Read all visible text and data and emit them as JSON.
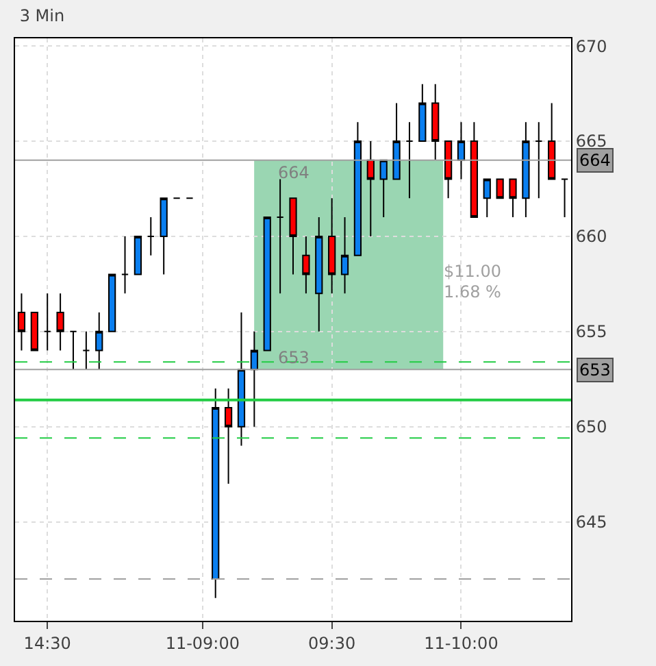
{
  "chart_data": {
    "type": "candlestick",
    "title": "3 Min",
    "categories": [
      null,
      null,
      "14:30",
      null,
      null,
      null,
      null,
      null,
      null,
      null,
      null,
      null,
      null,
      null,
      "11-09:00",
      null,
      null,
      null,
      null,
      null,
      null,
      null,
      null,
      null,
      "09:30",
      null,
      null,
      null,
      null,
      null,
      null,
      null,
      null,
      null,
      "11-10:00",
      null,
      null,
      null,
      null,
      null,
      null,
      null,
      null
    ],
    "ohlc": [
      [
        656,
        657,
        654,
        655
      ],
      [
        656,
        656,
        654,
        654
      ],
      [
        655,
        657,
        654,
        655
      ],
      [
        656,
        657,
        654,
        655
      ],
      [
        655,
        655,
        653,
        655
      ],
      [
        654,
        655,
        653,
        654
      ],
      [
        654,
        656,
        653,
        655
      ],
      [
        655,
        658,
        655,
        658
      ],
      [
        658,
        660,
        657,
        658
      ],
      [
        658,
        660,
        658,
        660
      ],
      [
        660,
        661,
        659,
        660
      ],
      [
        660,
        662,
        658,
        662
      ],
      [
        662,
        662,
        662,
        662
      ],
      [
        662,
        662,
        662,
        662
      ],
      null,
      [
        642,
        652,
        641,
        651
      ],
      [
        651,
        652,
        647,
        650
      ],
      [
        650,
        656,
        649,
        653
      ],
      [
        653,
        655,
        650,
        654
      ],
      [
        654,
        661,
        654,
        661
      ],
      [
        661,
        663,
        657,
        661
      ],
      [
        662,
        662,
        658,
        660
      ],
      [
        659,
        660,
        657,
        658
      ],
      [
        657,
        661,
        655,
        660
      ],
      [
        660,
        662,
        657,
        658
      ],
      [
        658,
        661,
        657,
        659
      ],
      [
        659,
        666,
        659,
        665
      ],
      [
        664,
        665,
        660,
        663
      ],
      [
        663,
        664,
        661,
        664
      ],
      [
        663,
        667,
        663,
        665
      ],
      [
        665,
        666,
        662,
        665
      ],
      [
        665,
        668,
        665,
        667
      ],
      [
        667,
        668,
        664,
        665
      ],
      [
        665,
        665,
        662,
        663
      ],
      [
        664,
        666,
        663,
        665
      ],
      [
        665,
        666,
        661,
        661
      ],
      [
        662,
        663,
        661,
        663
      ],
      [
        663,
        663,
        662,
        662
      ],
      [
        663,
        663,
        661,
        662
      ],
      [
        662,
        666,
        661,
        665
      ],
      [
        665,
        666,
        662,
        665
      ],
      [
        665,
        667,
        663,
        663
      ],
      [
        663,
        663,
        661,
        663
      ]
    ],
    "colors": [
      "#ff0000",
      "#ff0000",
      "#000000",
      "#ff0000",
      "#000000",
      "#000000",
      "#0a7ff0",
      "#0a7ff0",
      "#000000",
      "#0a7ff0",
      "#000000",
      "#0a7ff0",
      "#000000",
      "#000000",
      null,
      "#0a7ff0",
      "#ff0000",
      "#0a7ff0",
      "#0a7ff0",
      "#0a7ff0",
      "#000000",
      "#ff0000",
      "#ff0000",
      "#0a7ff0",
      "#ff0000",
      "#0a7ff0",
      "#0a7ff0",
      "#ff0000",
      "#0a7ff0",
      "#0a7ff0",
      "#000000",
      "#0a7ff0",
      "#ff0000",
      "#ff0000",
      "#0a7ff0",
      "#ff0000",
      "#0a7ff0",
      "#ff0000",
      "#ff0000",
      "#0a7ff0",
      "#000000",
      "#ff0000",
      "#000000"
    ],
    "ylim": [
      639.8,
      670.4
    ],
    "yticks": [
      645,
      650,
      655,
      660,
      665,
      670
    ],
    "ref_lines": [
      {
        "axis": "y",
        "value": 653.4,
        "color": "#22cc44",
        "line_style": "dashed"
      },
      {
        "axis": "y",
        "value": 651.4,
        "color": "#22cc44",
        "line_style": "solid"
      },
      {
        "axis": "y",
        "value": 649.4,
        "color": "#22cc44",
        "line_style": "dashed"
      },
      {
        "axis": "y",
        "value": 642,
        "color": "#a0a0a0",
        "line_style": "dashed"
      },
      {
        "axis": "y",
        "value": 664,
        "label": "664",
        "color": "#a0a0a0",
        "line_style": "solid"
      },
      {
        "axis": "y",
        "value": 653,
        "label": "653",
        "color": "#a0a0a0",
        "line_style": "solid"
      }
    ],
    "bands": [
      {
        "axis": "y",
        "from": 653,
        "to": 664,
        "color": "#9ad6b2"
      }
    ],
    "annotations": [
      {
        "text": "664",
        "y": 664
      },
      {
        "text": "653",
        "y": 653
      },
      "$11.00",
      "1.68 %"
    ],
    "grid": true
  }
}
